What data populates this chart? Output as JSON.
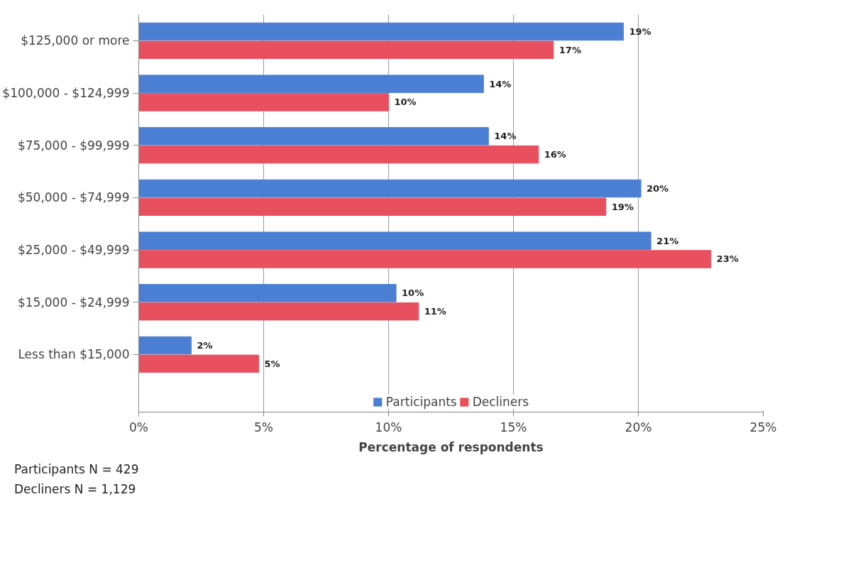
{
  "chart_data": {
    "type": "bar",
    "orientation": "horizontal",
    "xlabel": "Percentage of respondents",
    "categories": [
      "$125,000 or more",
      "$100,000 - $124,999",
      "$75,000 - $99,999",
      "$50,000 - $74,999",
      "$25,000 - $49,999",
      "$15,000 - $24,999",
      "Less than $15,000"
    ],
    "series": [
      {
        "name": "Participants",
        "color": "#4a7fd4",
        "values": [
          19.4,
          13.8,
          14.0,
          20.1,
          20.5,
          10.3,
          2.1
        ],
        "value_labels": [
          "19%",
          "14%",
          "14%",
          "20%",
          "21%",
          "10%",
          "2%"
        ]
      },
      {
        "name": "Decliners",
        "color": "#e8505f",
        "values": [
          16.6,
          10.0,
          16.0,
          18.7,
          22.9,
          11.2,
          4.8
        ],
        "value_labels": [
          "17%",
          "10%",
          "16%",
          "19%",
          "23%",
          "11%",
          "5%"
        ]
      }
    ],
    "xlim": [
      0,
      25
    ],
    "xticks": [
      {
        "value": 0,
        "label": "0%"
      },
      {
        "value": 5,
        "label": "5%"
      },
      {
        "value": 10,
        "label": "10%"
      },
      {
        "value": 15,
        "label": "15%"
      },
      {
        "value": 20,
        "label": "20%"
      },
      {
        "value": 25,
        "label": "25%"
      }
    ],
    "grid": "x",
    "legend": "bottom",
    "annotations": [
      "Participants N = 429",
      "Decliners N = 1,129"
    ]
  }
}
